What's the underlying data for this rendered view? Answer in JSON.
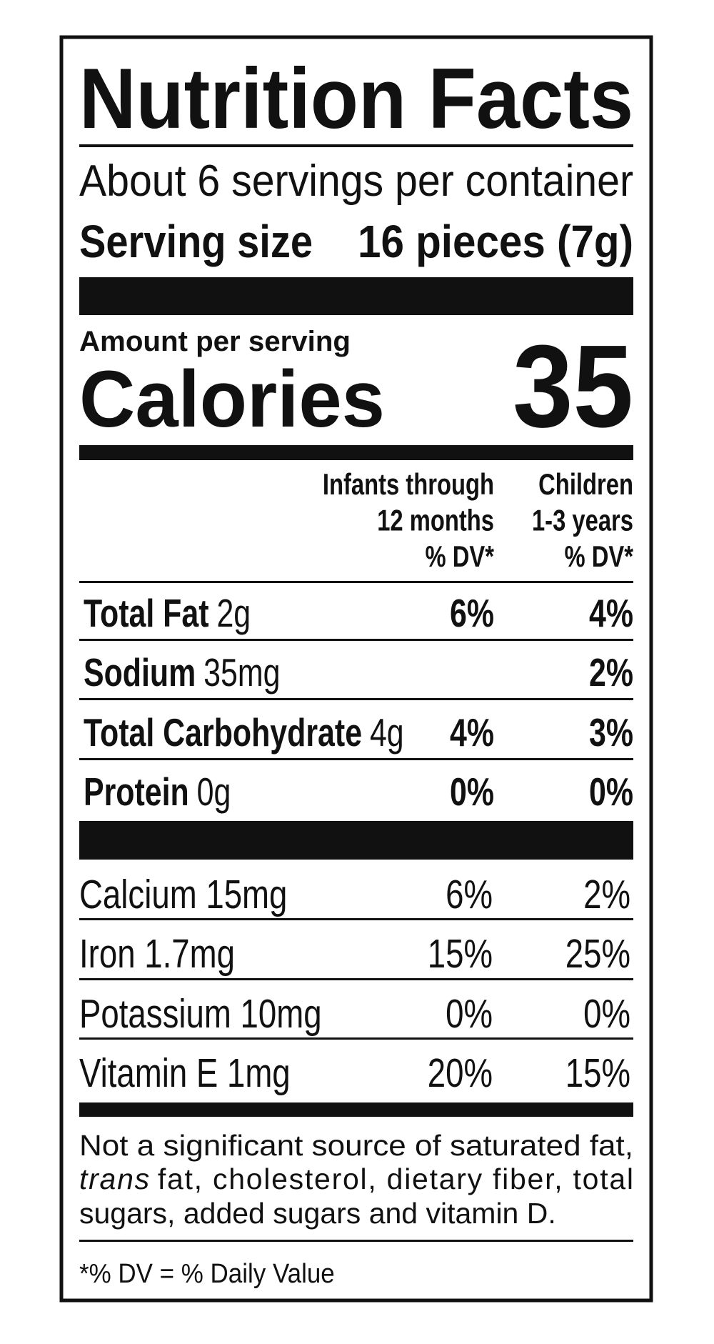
{
  "header": {
    "title": "Nutrition Facts",
    "servings": "About 6 servings per container",
    "serving_size_label": "Serving size",
    "serving_size_value": "16 pieces (7g)"
  },
  "calories": {
    "amount_label": "Amount per serving",
    "label": "Calories",
    "value": "35"
  },
  "columns": {
    "infants": [
      "Infants through",
      "12 months",
      "% DV*"
    ],
    "children": [
      "Children",
      "1-3 years",
      "% DV*"
    ]
  },
  "nutrients": [
    {
      "name": "Total Fat",
      "amount": "2g",
      "infants": "6%",
      "children": "4%"
    },
    {
      "name": "Sodium",
      "amount": "35mg",
      "children": "2%"
    },
    {
      "name": "Total Carbohydrate",
      "amount": "4g",
      "infants": "4%",
      "children": "3%"
    },
    {
      "name": "Protein",
      "amount": "0g",
      "infants": "0%",
      "children": "0%"
    }
  ],
  "minerals": [
    {
      "label": "Calcium 15mg",
      "infants": "6%",
      "children": "2%"
    },
    {
      "label": "Iron 1.7mg",
      "infants": "15%",
      "children": "25%"
    },
    {
      "label": "Potassium 10mg",
      "infants": "0%",
      "children": "0%"
    },
    {
      "label": "Vitamin E 1mg",
      "infants": "20%",
      "children": "15%"
    }
  ],
  "note": {
    "line1": "Not a significant source of saturated fat,",
    "line2_italic": "trans",
    "line2": "fat, cholesterol, dietary fiber, total",
    "line3": "sugars, added sugars and vitamin D."
  },
  "dv_note": "*% DV = % Daily Value"
}
